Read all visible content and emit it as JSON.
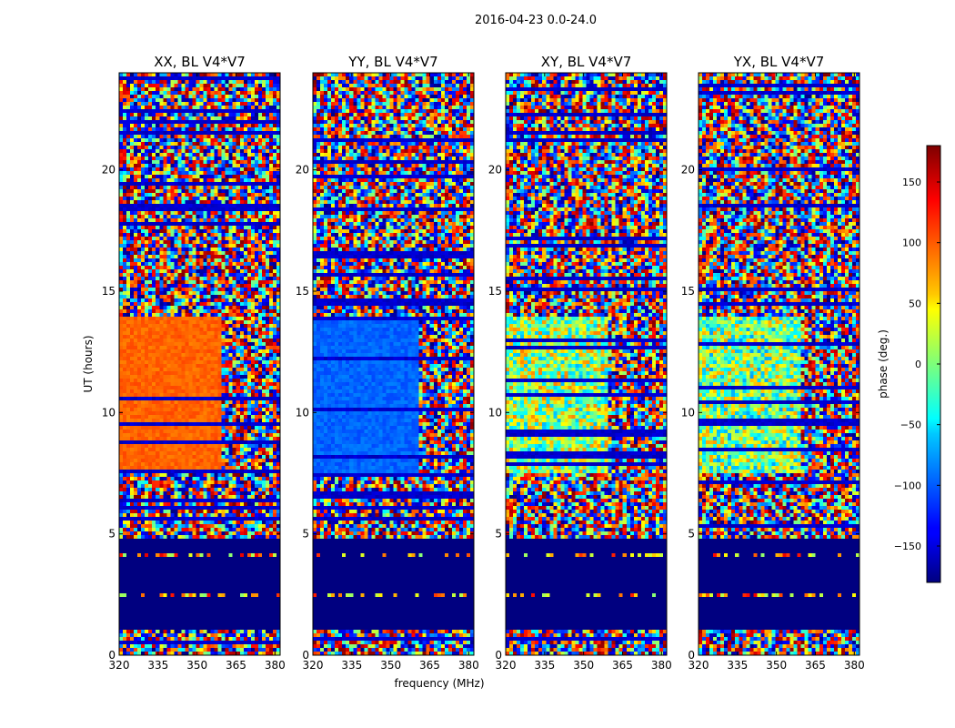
{
  "chart_data": {
    "type": "heatmap",
    "suptitle": "2016-04-23 0.0-24.0",
    "xlabel": "frequency (MHz)",
    "ylabel": "UT (hours)",
    "xlim": [
      320,
      382
    ],
    "ylim": [
      0,
      24
    ],
    "xticks": [
      "320",
      "335",
      "350",
      "365",
      "380"
    ],
    "yticks": [
      "0",
      "5",
      "10",
      "15",
      "20"
    ],
    "panels": [
      {
        "title": "XX, BL V4*V7",
        "pol": "XX",
        "phase_8_14h_deg": 100,
        "break_mhz": 360
      },
      {
        "title": "YY, BL V4*V7",
        "pol": "YY",
        "phase_8_14h_deg": -100,
        "break_mhz": 361
      },
      {
        "title": "XY, BL V4*V7",
        "pol": "XY",
        "phase_8_14h_deg": 10,
        "break_mhz": 359
      },
      {
        "title": "YX, BL V4*V7",
        "pol": "YX",
        "phase_8_14h_deg": 0,
        "break_mhz": 359
      }
    ],
    "flagged_band_hours": [
      1.1,
      4.8
    ],
    "flagged_phase_deg": -180,
    "colorbar": {
      "label": "phase (deg.)",
      "range": [
        -180,
        180
      ],
      "ticks": [
        "150",
        "100",
        "50",
        "0",
        "−50",
        "−100",
        "−150"
      ],
      "cmap": "jet"
    }
  },
  "colors": {
    "flag": "#00007f",
    "frame": "#000000"
  }
}
